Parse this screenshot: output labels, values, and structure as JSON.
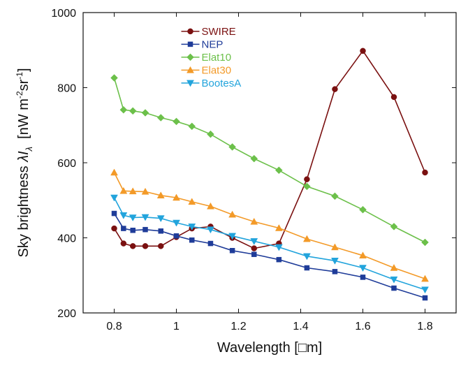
{
  "chart_data": {
    "type": "line",
    "title": "",
    "xlabel": "Wavelength [□m]",
    "ylabel_main": "Sky brightness ",
    "ylabel_lambda": "λI",
    "ylabel_sub": "λ",
    "ylabel_unit_a": "[nW m",
    "ylabel_sup1": "-2",
    "ylabel_unit_b": "sr",
    "ylabel_sup2": "-1",
    "ylabel_unit_c": "]",
    "xlim": [
      0.7,
      1.9
    ],
    "ylim": [
      200,
      1000
    ],
    "xticks": [
      0.8,
      1.0,
      1.2,
      1.4,
      1.6,
      1.8
    ],
    "xtick_labels": [
      "0.8",
      "1",
      "1.2",
      "1.4",
      "1.6",
      "1.8"
    ],
    "yticks": [
      200,
      400,
      600,
      800,
      1000
    ],
    "ytick_labels": [
      "200",
      "400",
      "600",
      "800",
      "1000"
    ],
    "grid": false,
    "legend_position": "top-center",
    "series": [
      {
        "name": "SWIRE",
        "color": "#7a1010",
        "marker": "circle",
        "x": [
          0.8,
          0.83,
          0.86,
          0.9,
          0.95,
          1.0,
          1.05,
          1.11,
          1.18,
          1.25,
          1.33,
          1.42,
          1.51,
          1.6,
          1.7,
          1.8
        ],
        "y": [
          425,
          385,
          378,
          378,
          378,
          402,
          425,
          430,
          400,
          372,
          385,
          556,
          796,
          898,
          775,
          574
        ]
      },
      {
        "name": "NEP",
        "color": "#1f3c99",
        "marker": "square",
        "x": [
          0.8,
          0.83,
          0.86,
          0.9,
          0.95,
          1.0,
          1.05,
          1.11,
          1.18,
          1.25,
          1.33,
          1.42,
          1.51,
          1.6,
          1.7,
          1.8
        ],
        "y": [
          465,
          425,
          420,
          422,
          418,
          405,
          394,
          385,
          366,
          356,
          342,
          320,
          310,
          295,
          266,
          240
        ]
      },
      {
        "name": "Elat10",
        "color": "#6cc04a",
        "marker": "diamond",
        "x": [
          0.8,
          0.83,
          0.86,
          0.9,
          0.95,
          1.0,
          1.05,
          1.11,
          1.18,
          1.25,
          1.33,
          1.42,
          1.51,
          1.6,
          1.7,
          1.8
        ],
        "y": [
          826,
          741,
          738,
          733,
          720,
          710,
          697,
          676,
          642,
          611,
          580,
          537,
          511,
          475,
          430,
          388
        ]
      },
      {
        "name": "Elat30",
        "color": "#f39a28",
        "marker": "triangle-up",
        "x": [
          0.8,
          0.83,
          0.86,
          0.9,
          0.95,
          1.0,
          1.05,
          1.11,
          1.18,
          1.25,
          1.33,
          1.42,
          1.51,
          1.6,
          1.7,
          1.8
        ],
        "y": [
          574,
          525,
          524,
          523,
          513,
          507,
          496,
          484,
          462,
          443,
          426,
          397,
          375,
          353,
          320,
          291
        ]
      },
      {
        "name": "BootesA",
        "color": "#22a4dc",
        "marker": "triangle-down",
        "x": [
          0.8,
          0.83,
          0.86,
          0.9,
          0.95,
          1.0,
          1.05,
          1.11,
          1.18,
          1.25,
          1.33,
          1.42,
          1.51,
          1.6,
          1.7,
          1.8
        ],
        "y": [
          507,
          460,
          454,
          455,
          452,
          440,
          430,
          422,
          405,
          391,
          375,
          351,
          339,
          320,
          289,
          262
        ]
      }
    ]
  }
}
